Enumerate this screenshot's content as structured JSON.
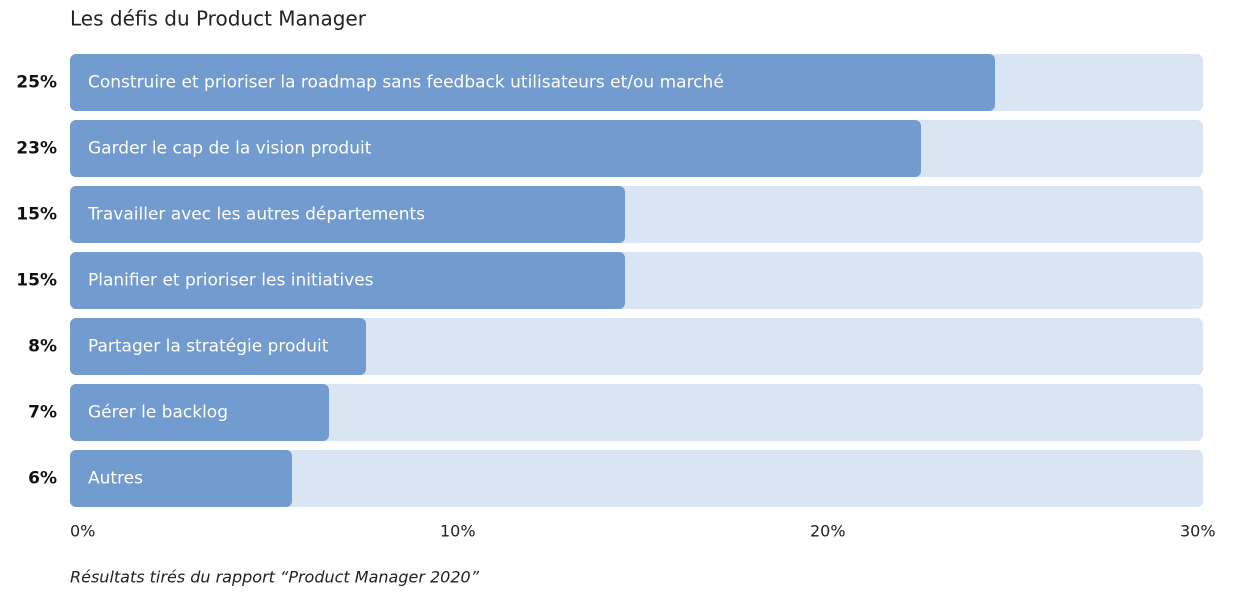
{
  "chart_data": {
    "type": "bar",
    "orientation": "horizontal",
    "title": "Les défis du Product Manager",
    "categories": [
      "Construire et prioriser la roadmap sans feedback utilisateurs et/ou marché",
      "Garder le cap de la vision produit",
      "Travailler avec les autres départements",
      "Planifier et prioriser les initiatives",
      "Partager la stratégie produit",
      "Gérer le backlog",
      "Autres"
    ],
    "values": [
      25,
      23,
      15,
      15,
      8,
      7,
      6
    ],
    "value_labels": [
      "25%",
      "23%",
      "15%",
      "15%",
      "8%",
      "7%",
      "6%"
    ],
    "color": "#729bcf",
    "xlim": [
      0,
      30
    ],
    "xticks": [
      {
        "value": 0,
        "label": "0%"
      },
      {
        "value": 10,
        "label": "10%"
      },
      {
        "value": 20,
        "label": "20%"
      },
      {
        "value": 30,
        "label": "30%"
      }
    ],
    "note": "Résultats tirés du rapport “Product Manager 2020”"
  }
}
